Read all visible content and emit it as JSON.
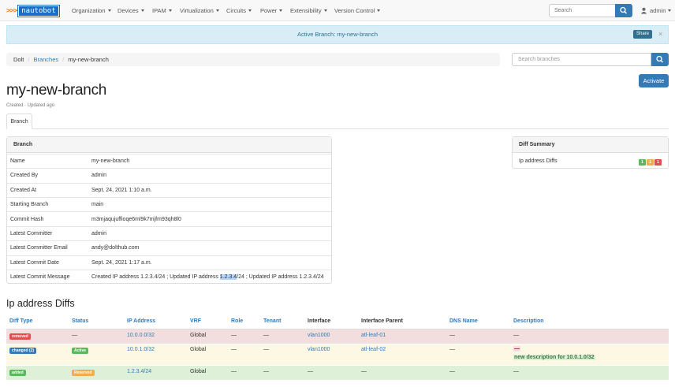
{
  "nav": {
    "logo_arrows": ">>>",
    "logo_text": "nautobot",
    "menus": [
      "Organization",
      "Devices",
      "IPAM",
      "Virtualization",
      "Circuits",
      "Power",
      "Extensibility",
      "Version Control"
    ],
    "search_placeholder": "Search",
    "user": "admin"
  },
  "alert": {
    "text": "Active Branch: my-new-branch",
    "share_label": "Share",
    "close": "×"
  },
  "breadcrumb": {
    "root": "Dolt",
    "branches": "Branches",
    "current": "my-new-branch"
  },
  "branch_search_placeholder": "Search branches",
  "activate_label": "Activate",
  "page": {
    "title": "my-new-branch",
    "subtitle": "Created · Updated ago",
    "tab": "Branch"
  },
  "branch_panel": {
    "heading": "Branch",
    "rows": [
      {
        "key": "Name",
        "value": "my-new-branch"
      },
      {
        "key": "Created By",
        "value": "admin"
      },
      {
        "key": "Created At",
        "value": "Sept. 24, 2021 1:10 a.m."
      },
      {
        "key": "Starting Branch",
        "value": "main"
      },
      {
        "key": "Commit Hash",
        "value": "m3mjaqujuffioqe6ml9k7mjfm93qh8l0"
      },
      {
        "key": "Latest Committer",
        "value": "admin"
      },
      {
        "key": "Latest Committer Email",
        "value": "andy@dolthub.com"
      },
      {
        "key": "Latest Commit Date",
        "value": "Sept. 24, 2021 1:17 a.m."
      }
    ],
    "message_key": "Latest Commit Message",
    "message_pre": "Created IP address 1.2.3.4/24 ; Updated IP address ",
    "message_hl": "1.2.3.4",
    "message_post": "/24 ; Updated IP address 1.2.3.4/24"
  },
  "diff_summary": {
    "heading": "Diff Summary",
    "label": "Ip address Diffs",
    "counts": [
      "1",
      "1",
      "1"
    ],
    "colors": [
      "#5cb85c",
      "#f0ad4e",
      "#d9534f"
    ]
  },
  "diffs": {
    "heading": "Ip address Diffs",
    "columns": [
      "Diff Type",
      "Status",
      "IP Address",
      "VRF",
      "Role",
      "Tenant",
      "Interface",
      "Interface Parent",
      "DNS Name",
      "Description"
    ],
    "rows": [
      {
        "type": "removed",
        "type_color": "#d9534f",
        "status": "—",
        "status_color": "",
        "ip": "10.0.0.0/32",
        "vrf": "Global",
        "role": "—",
        "tenant": "—",
        "interface": "vlan1000",
        "parent": "atl-leaf-01",
        "dns": "—",
        "desc": "—",
        "desc2": "",
        "bg": "#f2dede"
      },
      {
        "type": "changed (2)",
        "type_color": "#337ab7",
        "status": "Active",
        "status_color": "#5cb85c",
        "ip": "10.0.1.0/32",
        "vrf": "Global",
        "role": "—",
        "tenant": "—",
        "interface": "vlan1000",
        "parent": "atl-leaf-02",
        "dns": "—",
        "desc": "—",
        "desc2": "new description for 10.0.1.0/32",
        "bg": "#fcf8e3"
      },
      {
        "type": "added",
        "type_color": "#5cb85c",
        "status": "Reserved",
        "status_color": "#f0ad4e",
        "ip": "1.2.3.4/24",
        "vrf": "Global",
        "role": "—",
        "tenant": "—",
        "interface": "—",
        "parent": "—",
        "dns": "—",
        "desc": "—",
        "desc2": "",
        "bg": "#dff0d8"
      }
    ]
  }
}
